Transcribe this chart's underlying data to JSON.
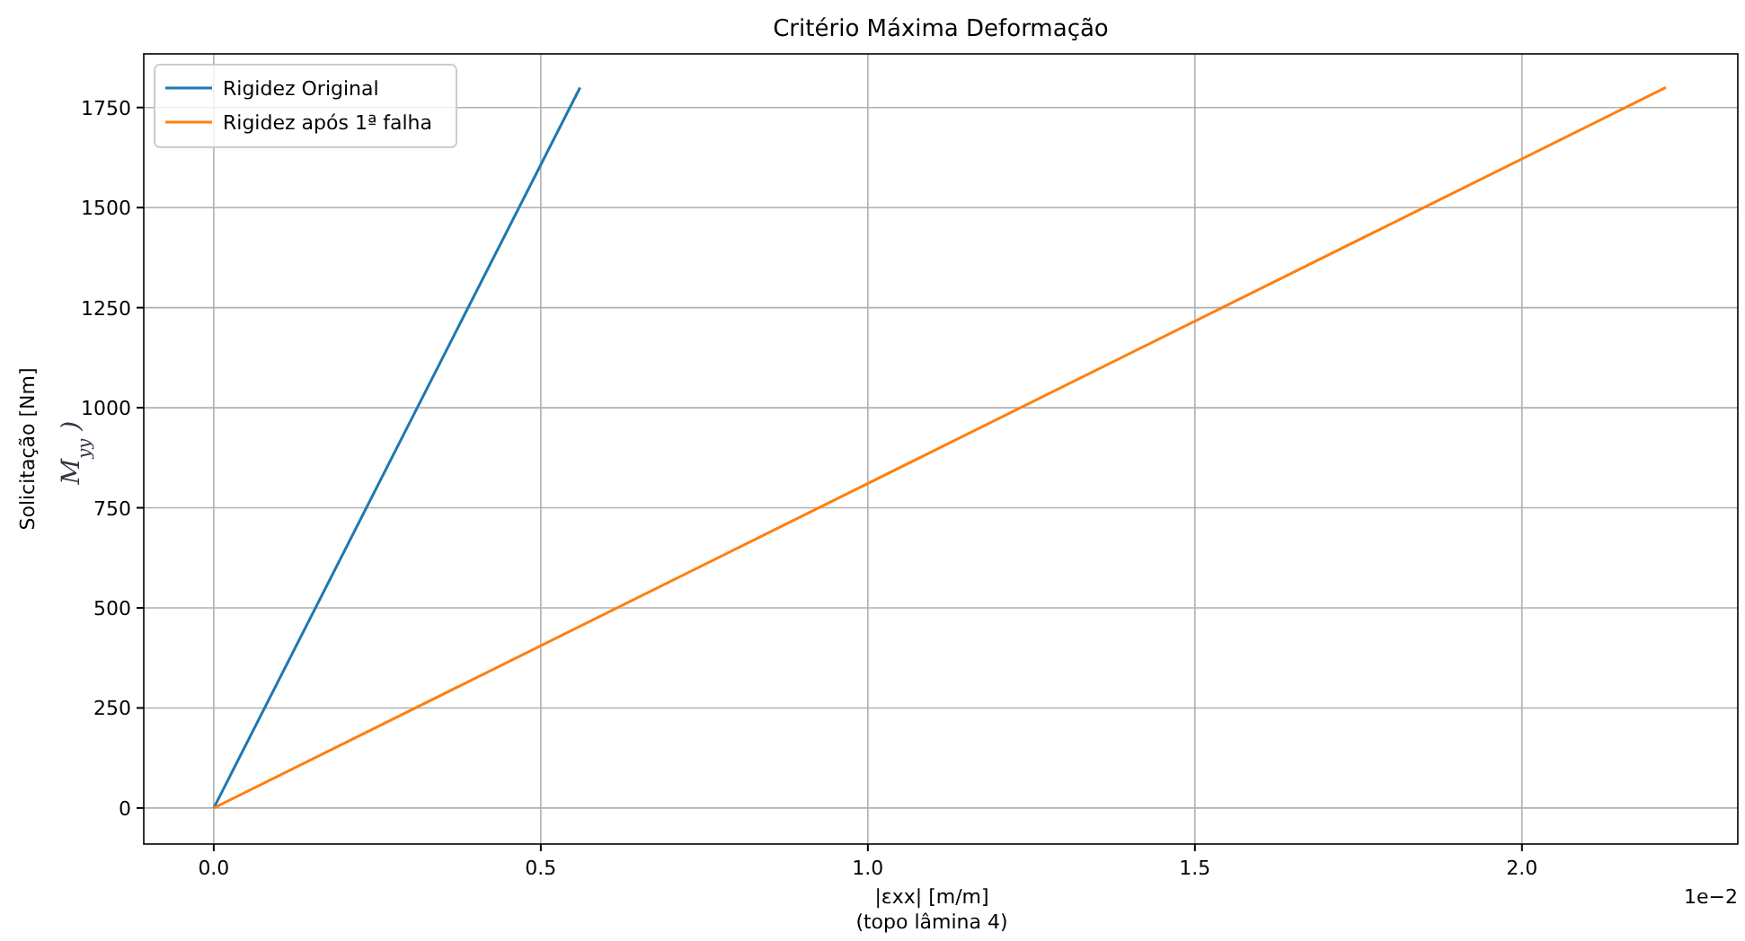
{
  "chart_data": {
    "type": "line",
    "title": "Critério Máxima Deformação",
    "xlabel": "|εxx| [m/m]\n(topo lâmina 4)",
    "ylabel": "Solicitação [Nm]",
    "annotations": [
      "1e−2",
      "M$_{yy}$ )"
    ],
    "xlim": [
      -0.107,
      2.33
    ],
    "ylim": [
      -90,
      1884
    ],
    "xticks": [
      {
        "value": 0,
        "label": "0.0"
      },
      {
        "value": 0.5,
        "label": "0.5"
      },
      {
        "value": 1,
        "label": "1.0"
      },
      {
        "value": 1.5,
        "label": "1.5"
      },
      {
        "value": 2,
        "label": "2.0"
      }
    ],
    "yticks": [
      0,
      250,
      500,
      750,
      1000,
      1250,
      1500,
      1750
    ],
    "grid": true,
    "legend": "top left",
    "series": [
      {
        "name": "Rigidez Original",
        "color": "#1f77b4",
        "x": [
          0,
          0.56
        ],
        "values": [
          0,
          1800
        ]
      },
      {
        "name": "Rigidez após 1ª falha",
        "color": "#ff7f0e",
        "x": [
          0,
          2.22
        ],
        "values": [
          0,
          1800
        ]
      }
    ]
  }
}
